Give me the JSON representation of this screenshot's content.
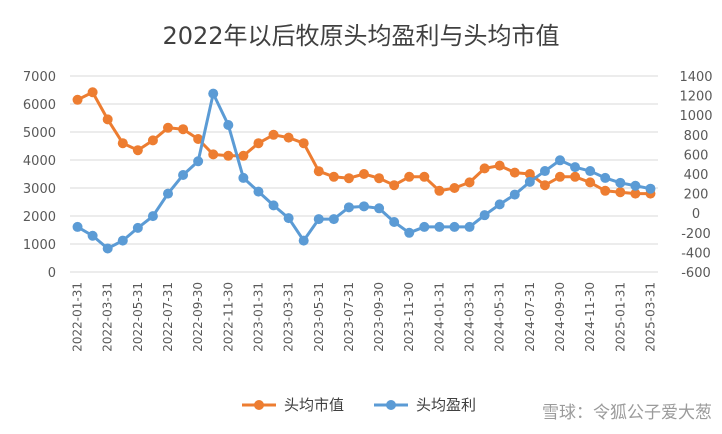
{
  "chart_data": {
    "type": "line",
    "title": "2022年以后牧原头均盈利与头均市值",
    "categories": [
      "2022-01-31",
      "2022-02-28",
      "2022-03-31",
      "2022-04-30",
      "2022-05-31",
      "2022-06-30",
      "2022-07-31",
      "2022-08-31",
      "2022-09-30",
      "2022-10-31",
      "2022-11-30",
      "2022-12-31",
      "2023-01-31",
      "2023-02-28",
      "2023-03-31",
      "2023-04-30",
      "2023-05-31",
      "2023-06-30",
      "2023-07-31",
      "2023-08-31",
      "2023-09-30",
      "2023-10-31",
      "2023-11-30",
      "2023-12-31",
      "2024-01-31",
      "2024-02-29",
      "2024-03-31",
      "2024-04-30",
      "2024-05-31",
      "2024-06-30",
      "2024-07-31",
      "2024-08-31",
      "2024-09-30",
      "2024-10-31",
      "2024-11-30",
      "2024-12-31",
      "2025-01-31",
      "2025-02-28",
      "2025-03-31"
    ],
    "x_tick_labels": [
      "2022-01-31",
      "2022-03-31",
      "2022-05-31",
      "2022-07-31",
      "2022-09-30",
      "2022-11-30",
      "2023-01-31",
      "2023-03-31",
      "2023-05-31",
      "2023-07-31",
      "2023-09-30",
      "2023-11-30",
      "2024-01-31",
      "2024-03-31",
      "2024-05-31",
      "2024-07-31",
      "2024-09-30",
      "2024-11-30",
      "2025-01-31",
      "2025-03-31"
    ],
    "left_axis": {
      "ylim": [
        0,
        7000
      ],
      "ticks": [
        "0",
        "1000",
        "2000",
        "3000",
        "4000",
        "5000",
        "6000",
        "7000"
      ]
    },
    "right_axis": {
      "ylim": [
        -600,
        1400
      ],
      "ticks": [
        "-600",
        "-400",
        "-200",
        "0",
        "200",
        "400",
        "600",
        "800",
        "1000",
        "1200",
        "1400"
      ]
    },
    "series": [
      {
        "name": "头均市值",
        "axis": "left",
        "color": "#ED7D31",
        "values": [
          6150,
          6420,
          5450,
          4600,
          4350,
          4700,
          5150,
          5100,
          4750,
          4200,
          4150,
          4150,
          4600,
          4900,
          4800,
          4600,
          3600,
          3400,
          3350,
          3500,
          3350,
          3100,
          3400,
          3400,
          2900,
          3000,
          3200,
          3700,
          3800,
          3550,
          3500,
          3100,
          3400,
          3400,
          3200,
          2900,
          2850,
          2800,
          2800
        ]
      },
      {
        "name": "头均盈利",
        "axis": "right",
        "color": "#5B9BD5",
        "values": [
          -140,
          -230,
          -360,
          -280,
          -150,
          -30,
          200,
          390,
          530,
          1220,
          900,
          360,
          220,
          80,
          -50,
          -280,
          -60,
          -60,
          60,
          70,
          50,
          -90,
          -200,
          -140,
          -140,
          -140,
          -140,
          -20,
          90,
          190,
          320,
          430,
          540,
          470,
          430,
          360,
          310,
          280,
          250
        ]
      }
    ],
    "grid": "horizontal",
    "legend": "bottom"
  },
  "watermark": "雪球：令狐公子爱大葱"
}
